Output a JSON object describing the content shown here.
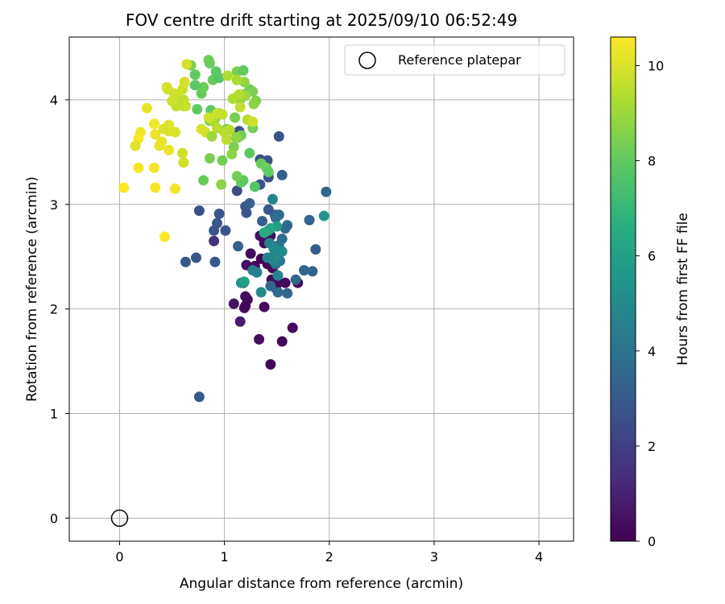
{
  "chart_data": {
    "type": "scatter",
    "title": "FOV centre drift starting at 2025/09/10 06:52:49",
    "xlabel": "Angular distance from reference (arcmin)",
    "ylabel": "Rotation from reference (arcmin)",
    "xlim": [
      -0.48,
      4.33
    ],
    "ylim": [
      -0.22,
      4.6
    ],
    "xticks": [
      "0",
      "1",
      "2",
      "3",
      "4"
    ],
    "yticks": [
      "0",
      "1",
      "2",
      "3",
      "4"
    ],
    "grid": true,
    "legend": {
      "position": "top-right",
      "entries": [
        {
          "label": "Reference platepar",
          "marker": "open-circle"
        }
      ]
    },
    "reference_point": {
      "x": 0,
      "y": 0
    },
    "colorbar": {
      "label": "Hours from first FF file",
      "colormap": "viridis",
      "min": 0,
      "max": 10.6,
      "ticks": [
        "0",
        "2",
        "4",
        "6",
        "8",
        "10"
      ]
    },
    "points": [
      [
        0.9,
        2.65,
        1.5
      ],
      [
        1.7,
        2.25,
        0.2
      ],
      [
        1.38,
        2.02,
        0.3
      ],
      [
        1.49,
        2.2,
        0.1
      ],
      [
        1.51,
        2.25,
        0.2
      ],
      [
        1.58,
        2.25,
        0.2
      ],
      [
        1.45,
        2.28,
        0.2
      ],
      [
        1.46,
        2.39,
        0.1
      ],
      [
        1.29,
        2.41,
        0.2
      ],
      [
        1.41,
        2.43,
        0.2
      ],
      [
        1.35,
        2.48,
        0.1
      ],
      [
        1.21,
        2.42,
        0.4
      ],
      [
        1.25,
        2.53,
        0.3
      ],
      [
        1.34,
        2.7,
        0.4
      ],
      [
        1.44,
        2.7,
        0.3
      ],
      [
        1.38,
        2.63,
        0.3
      ],
      [
        1.22,
        2.09,
        0.3
      ],
      [
        1.2,
        2.12,
        0.3
      ],
      [
        1.18,
        2.25,
        0.5
      ],
      [
        1.19,
        2.01,
        0.4
      ],
      [
        1.2,
        2.03,
        0.2
      ],
      [
        1.09,
        2.05,
        0.5
      ],
      [
        1.15,
        1.88,
        0.8
      ],
      [
        1.33,
        1.71,
        0.3
      ],
      [
        1.55,
        1.69,
        0.2
      ],
      [
        1.65,
        1.82,
        0.3
      ],
      [
        1.44,
        1.47,
        0.2
      ],
      [
        1.51,
        2.16,
        3.6
      ],
      [
        1.6,
        2.15,
        3.5
      ],
      [
        1.44,
        2.22,
        3.6
      ],
      [
        1.68,
        2.28,
        3.5
      ],
      [
        1.76,
        2.37,
        3.4
      ],
      [
        1.84,
        2.36,
        3.4
      ],
      [
        1.87,
        2.57,
        3.2
      ],
      [
        1.49,
        2.43,
        4.0
      ],
      [
        1.53,
        2.46,
        4.3
      ],
      [
        1.48,
        2.53,
        4.4
      ],
      [
        1.55,
        2.67,
        3.6
      ],
      [
        1.52,
        2.61,
        3.9
      ],
      [
        1.47,
        2.6,
        3.9
      ],
      [
        1.58,
        2.77,
        3.7
      ],
      [
        1.6,
        2.8,
        3.6
      ],
      [
        1.48,
        2.9,
        3.4
      ],
      [
        1.52,
        2.9,
        3.6
      ],
      [
        1.49,
        2.87,
        3.8
      ],
      [
        1.36,
        2.84,
        3.2
      ],
      [
        1.42,
        2.95,
        3.0
      ],
      [
        1.2,
        2.98,
        3.0
      ],
      [
        1.24,
        3.01,
        3.2
      ],
      [
        1.81,
        2.85,
        3.4
      ],
      [
        1.97,
        3.12,
        3.5
      ],
      [
        1.55,
        3.28,
        3.2
      ],
      [
        1.42,
        3.26,
        2.6
      ],
      [
        1.41,
        3.42,
        2.6
      ],
      [
        1.34,
        3.43,
        2.6
      ],
      [
        1.34,
        3.19,
        2.6
      ],
      [
        1.12,
        3.13,
        2.4
      ],
      [
        1.21,
        2.92,
        2.9
      ],
      [
        0.95,
        2.91,
        2.8
      ],
      [
        0.93,
        2.82,
        2.9
      ],
      [
        0.9,
        2.75,
        2.8
      ],
      [
        1.01,
        2.75,
        2.7
      ],
      [
        0.76,
        2.94,
        2.5
      ],
      [
        0.91,
        2.45,
        2.9
      ],
      [
        0.73,
        2.49,
        2.8
      ],
      [
        0.63,
        2.45,
        2.9
      ],
      [
        1.13,
        2.6,
        3.3
      ],
      [
        1.52,
        3.65,
        2.7
      ],
      [
        1.14,
        3.7,
        2.6
      ],
      [
        0.76,
        1.16,
        2.9
      ],
      [
        1.51,
        2.32,
        4.8
      ],
      [
        1.27,
        2.37,
        4.5
      ],
      [
        1.31,
        2.35,
        4.6
      ],
      [
        1.41,
        2.49,
        4.6
      ],
      [
        1.48,
        2.5,
        4.8
      ],
      [
        1.43,
        2.63,
        4.6
      ],
      [
        1.47,
        2.46,
        4.8
      ],
      [
        1.51,
        2.51,
        4.9
      ],
      [
        1.55,
        2.55,
        5.0
      ],
      [
        1.35,
        2.16,
        5.0
      ],
      [
        1.16,
        2.25,
        5.2
      ],
      [
        1.46,
        3.05,
        4.8
      ],
      [
        1.42,
        2.75,
        5.3
      ],
      [
        1.47,
        2.58,
        5.0
      ],
      [
        1.95,
        2.89,
        5.5
      ],
      [
        1.5,
        2.79,
        5.8
      ],
      [
        1.44,
        2.77,
        6.1
      ],
      [
        1.19,
        2.26,
        6.0
      ],
      [
        1.38,
        2.73,
        6.5
      ],
      [
        1.29,
        3.17,
        7.7
      ],
      [
        1.35,
        3.39,
        8.1
      ],
      [
        1.4,
        3.35,
        8.2
      ],
      [
        1.42,
        3.31,
        8.0
      ],
      [
        1.16,
        3.21,
        8.0
      ],
      [
        1.18,
        3.23,
        7.9
      ],
      [
        1.24,
        3.49,
        7.9
      ],
      [
        1.09,
        3.55,
        8.4
      ],
      [
        1.07,
        3.48,
        8.7
      ],
      [
        1.12,
        3.27,
        8.3
      ],
      [
        0.98,
        3.42,
        8.3
      ],
      [
        0.8,
        3.23,
        8.1
      ],
      [
        0.86,
        3.44,
        8.4
      ],
      [
        0.97,
        3.19,
        8.7
      ],
      [
        1.13,
        3.64,
        8.5
      ],
      [
        1.16,
        3.66,
        8.3
      ],
      [
        1.02,
        3.72,
        8.5
      ],
      [
        1.1,
        3.83,
        8.4
      ],
      [
        0.91,
        3.82,
        8.1
      ],
      [
        0.87,
        3.9,
        7.9
      ],
      [
        0.86,
        3.8,
        8.2
      ],
      [
        0.95,
        3.87,
        8.0
      ],
      [
        0.74,
        3.91,
        8.0
      ],
      [
        0.78,
        4.06,
        8.1
      ],
      [
        0.8,
        4.12,
        8.2
      ],
      [
        0.72,
        4.14,
        7.8
      ],
      [
        0.89,
        4.19,
        8.1
      ],
      [
        0.95,
        4.21,
        7.7
      ],
      [
        0.92,
        4.27,
        7.9
      ],
      [
        0.86,
        4.35,
        8.1
      ],
      [
        0.85,
        4.38,
        8.2
      ],
      [
        0.72,
        4.24,
        8.0
      ],
      [
        0.68,
        4.33,
        8.4
      ],
      [
        1.12,
        4.27,
        8.4
      ],
      [
        1.18,
        4.28,
        8.0
      ],
      [
        1.24,
        4.1,
        8.2
      ],
      [
        1.27,
        4.08,
        8.4
      ],
      [
        1.3,
        3.99,
        8.5
      ],
      [
        1.28,
        3.96,
        8.7
      ],
      [
        1.27,
        3.73,
        8.3
      ],
      [
        1.18,
        4.05,
        8.6
      ],
      [
        1.15,
        4.0,
        8.7
      ],
      [
        1.19,
        4.17,
        8.8
      ],
      [
        1.2,
        4.04,
        9.0
      ],
      [
        0.9,
        3.79,
        9.2
      ],
      [
        1.0,
        3.69,
        9.5
      ],
      [
        1.05,
        3.71,
        9.4
      ],
      [
        1.02,
        3.62,
        9.5
      ],
      [
        1.08,
        4.01,
        9.3
      ],
      [
        1.03,
        4.23,
        9.3
      ],
      [
        1.12,
        4.19,
        9.2
      ],
      [
        1.14,
        4.05,
        9.4
      ],
      [
        1.15,
        3.93,
        9.6
      ],
      [
        1.22,
        3.81,
        9.4
      ],
      [
        1.27,
        3.79,
        9.8
      ],
      [
        0.98,
        3.86,
        9.6
      ],
      [
        0.93,
        3.73,
        9.5
      ],
      [
        0.93,
        3.87,
        9.7
      ],
      [
        0.85,
        3.83,
        9.8
      ],
      [
        0.78,
        3.72,
        10.0
      ],
      [
        0.82,
        3.69,
        10.0
      ],
      [
        0.61,
        4.0,
        9.6
      ],
      [
        0.61,
        3.94,
        9.5
      ],
      [
        0.63,
        3.94,
        9.7
      ],
      [
        0.55,
        4.02,
        9.6
      ],
      [
        0.54,
        3.94,
        9.6
      ],
      [
        0.5,
        3.99,
        9.8
      ],
      [
        0.6,
        4.1,
        9.8
      ],
      [
        0.62,
        4.17,
        9.9
      ],
      [
        0.64,
        4.34,
        9.9
      ],
      [
        0.52,
        4.06,
        9.8
      ],
      [
        0.46,
        4.1,
        9.7
      ],
      [
        0.45,
        4.12,
        9.9
      ],
      [
        0.6,
        3.49,
        9.8
      ],
      [
        0.61,
        3.4,
        9.9
      ],
      [
        0.53,
        3.69,
        10.0
      ],
      [
        0.47,
        3.7,
        10.0
      ],
      [
        0.47,
        3.76,
        10.1
      ],
      [
        0.42,
        3.72,
        10.0
      ],
      [
        0.38,
        3.56,
        10.3
      ],
      [
        0.4,
        3.6,
        10.2
      ],
      [
        0.47,
        3.52,
        10.3
      ],
      [
        0.33,
        3.35,
        10.4
      ],
      [
        0.34,
        3.16,
        10.5
      ],
      [
        0.53,
        3.15,
        10.4
      ],
      [
        0.34,
        3.67,
        10.3
      ],
      [
        0.33,
        3.77,
        10.4
      ],
      [
        0.2,
        3.69,
        10.4
      ],
      [
        0.18,
        3.63,
        10.5
      ],
      [
        0.18,
        3.35,
        10.5
      ],
      [
        0.15,
        3.56,
        10.1
      ],
      [
        0.26,
        3.92,
        10.2
      ],
      [
        0.04,
        3.16,
        10.6
      ],
      [
        0.43,
        2.69,
        10.6
      ],
      [
        1.11,
        3.64,
        8.8
      ],
      [
        0.88,
        3.65,
        9.0
      ]
    ]
  }
}
